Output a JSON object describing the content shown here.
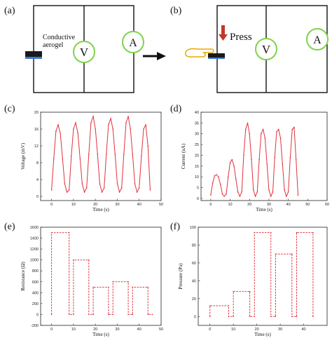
{
  "panels": {
    "a": {
      "label": "(a)",
      "material_label_line1": "Conductive",
      "material_label_line2": "aerogel",
      "voltmeter": "V",
      "ammeter": "A"
    },
    "b": {
      "label": "(b)",
      "press_label": "Press",
      "voltmeter": "V",
      "ammeter": "A"
    },
    "c": {
      "label": "(c)"
    },
    "d": {
      "label": "(d)"
    },
    "e": {
      "label": "(e)"
    },
    "f": {
      "label": "(f)"
    }
  },
  "colors": {
    "trace": "#e0323c",
    "circuit": "#111111",
    "meter_ring": "#7fd34a",
    "press_arrow": "#c0392b",
    "hand": "#e9a800",
    "sample": "#1a1a1a",
    "sample_edge": "#3a7bd5"
  },
  "chart_data": [
    {
      "type": "line",
      "panel": "c",
      "xlabel": "Time (s)",
      "ylabel": "Voltage (mV)",
      "xlim": [
        -5,
        50
      ],
      "ylim": [
        -1,
        20
      ],
      "xticks": [
        0,
        10,
        20,
        30,
        40,
        50
      ],
      "yticks": [
        0,
        4,
        8,
        12,
        16,
        20
      ],
      "x": [
        0,
        1,
        2,
        3,
        4,
        5,
        6,
        7,
        8,
        9,
        10,
        11,
        12,
        13,
        14,
        15,
        16,
        17,
        18,
        19,
        20,
        21,
        22,
        23,
        24,
        25,
        26,
        27,
        28,
        29,
        30,
        31,
        32,
        33,
        34,
        35,
        36,
        37,
        38,
        39,
        40,
        41,
        42,
        43,
        44,
        45
      ],
      "y": [
        1.5,
        9,
        15.5,
        17,
        15,
        9,
        3,
        1,
        1.5,
        9.5,
        16,
        17.5,
        15,
        9,
        3,
        1,
        2,
        10,
        17.5,
        19,
        16,
        10,
        3,
        1,
        2,
        10,
        17,
        18.5,
        16,
        10,
        3,
        1,
        2,
        10,
        17.5,
        19,
        16,
        10,
        3,
        1,
        2,
        9.5,
        16,
        17,
        12,
        1.5
      ]
    },
    {
      "type": "line",
      "panel": "d",
      "xlabel": "Time (s)",
      "ylabel": "Current (uA)",
      "xlim": [
        -5,
        60
      ],
      "ylim": [
        -1,
        40
      ],
      "xticks": [
        0,
        10,
        20,
        30,
        40,
        50,
        60
      ],
      "yticks": [
        0,
        5,
        10,
        15,
        20,
        25,
        30,
        35,
        40
      ],
      "x": [
        0,
        1,
        2,
        3,
        4,
        5,
        6,
        7,
        8,
        9,
        10,
        11,
        12,
        13,
        14,
        15,
        16,
        17,
        18,
        19,
        20,
        21,
        22,
        23,
        24,
        25,
        26,
        27,
        28,
        29,
        30,
        31,
        32,
        33,
        34,
        35,
        36,
        37,
        38,
        39,
        40,
        41,
        42,
        43,
        44,
        45
      ],
      "y": [
        1.5,
        7,
        10.5,
        11,
        10,
        6.5,
        2,
        1,
        2,
        10,
        16.5,
        18,
        15,
        9,
        3,
        1,
        3,
        20,
        32,
        35,
        30,
        18,
        4,
        1,
        3,
        18,
        30,
        32,
        28,
        16,
        4,
        1,
        3,
        19,
        31,
        32,
        28,
        16,
        4,
        1,
        3,
        19,
        32,
        33,
        18,
        1.5
      ]
    },
    {
      "type": "line",
      "panel": "e",
      "xlabel": "Time (s)",
      "ylabel": "Resistance (Ω)",
      "xlim": [
        -5,
        50
      ],
      "ylim": [
        -200,
        1600
      ],
      "xticks": [
        0,
        10,
        20,
        30,
        40,
        50
      ],
      "yticks": [
        -200,
        0,
        200,
        400,
        600,
        800,
        1000,
        1200,
        1400,
        1600
      ],
      "x": [
        0,
        0,
        8,
        8,
        10,
        10,
        17,
        17,
        19,
        19,
        26,
        26,
        28,
        28,
        35,
        35,
        37,
        37,
        44,
        44,
        46
      ],
      "y": [
        0,
        1500,
        1500,
        0,
        0,
        1000,
        1000,
        0,
        0,
        500,
        500,
        0,
        0,
        600,
        600,
        0,
        0,
        500,
        500,
        0,
        0
      ]
    },
    {
      "type": "line",
      "panel": "f",
      "xlabel": "Time (s)",
      "ylabel": "Pressure (Pa)",
      "xlim": [
        -5,
        50
      ],
      "ylim": [
        -10,
        100
      ],
      "xticks": [
        0,
        10,
        20,
        30,
        40
      ],
      "yticks": [
        0,
        20,
        40,
        60,
        80,
        100
      ],
      "x": [
        0,
        0,
        8,
        8,
        10,
        10,
        17,
        17,
        19,
        19,
        26,
        26,
        28,
        28,
        35,
        35,
        37,
        37,
        44,
        44
      ],
      "y": [
        0,
        12,
        12,
        0,
        0,
        28,
        28,
        0,
        0,
        94,
        94,
        0,
        0,
        70,
        70,
        0,
        0,
        94,
        94,
        0
      ]
    }
  ]
}
